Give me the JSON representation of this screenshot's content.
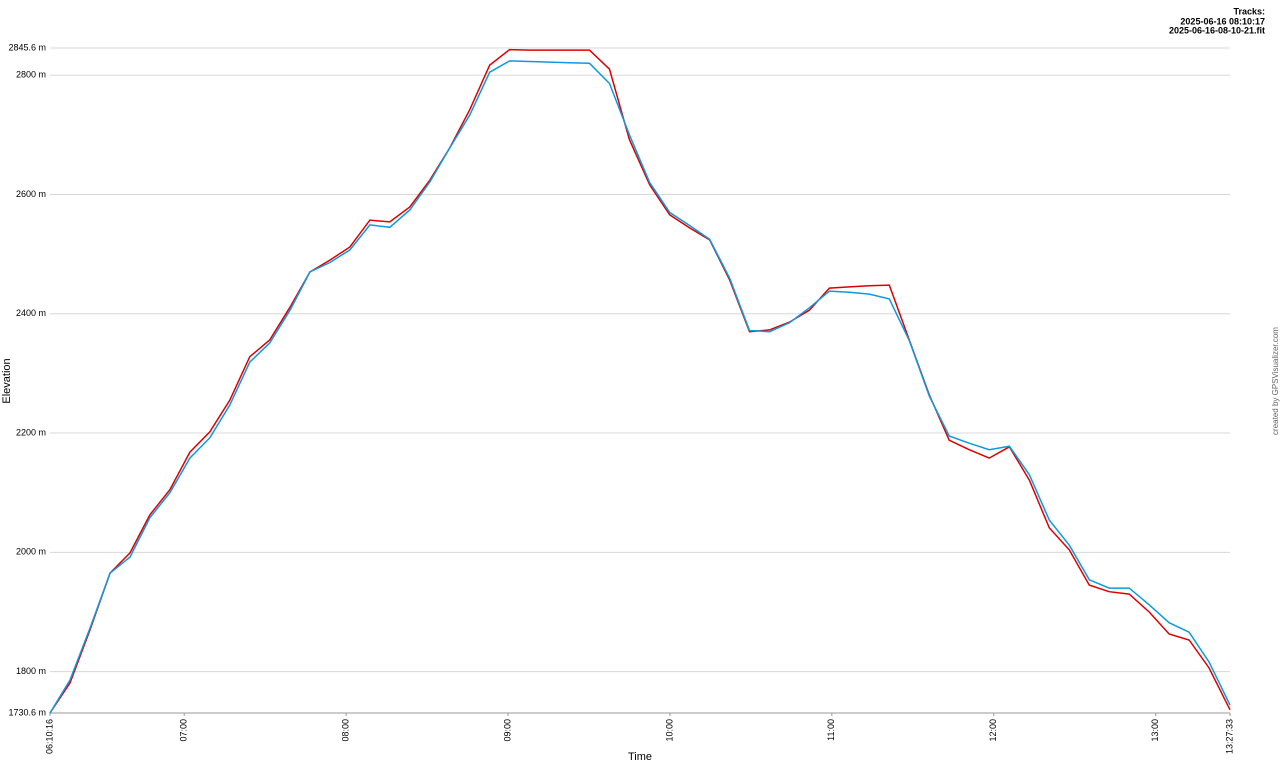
{
  "chart_data": {
    "type": "line",
    "legend_title": "Tracks:",
    "x_label": "Time",
    "y_label": "Elevation",
    "credit": "created by GPSVisualizer.com",
    "legend": "top-right",
    "grid": true,
    "xlim": [
      370.27,
      807.55
    ],
    "xticks": [
      {
        "value": 370.27,
        "label": "06:10:16"
      },
      {
        "value": 420,
        "label": "07:00"
      },
      {
        "value": 480,
        "label": "08:00"
      },
      {
        "value": 540,
        "label": "09:00"
      },
      {
        "value": 600,
        "label": "10:00"
      },
      {
        "value": 660,
        "label": "11:00"
      },
      {
        "value": 720,
        "label": "12:00"
      },
      {
        "value": 780,
        "label": "13:00"
      },
      {
        "value": 807.55,
        "label": "13:27:33"
      }
    ],
    "ylim": [
      1730.6,
      2845.6
    ],
    "yticks": [
      {
        "value": 1730.6,
        "label": "1730.6 m"
      },
      {
        "value": 1800,
        "label": "1800 m"
      },
      {
        "value": 2000,
        "label": "2000 m"
      },
      {
        "value": 2200,
        "label": "2200 m"
      },
      {
        "value": 2400,
        "label": "2400 m"
      },
      {
        "value": 2600,
        "label": "2600 m"
      },
      {
        "value": 2800,
        "label": "2800 m"
      },
      {
        "value": 2845.6,
        "label": "2845.6 m"
      }
    ],
    "x": [
      370.27,
      377.7,
      385.1,
      392.5,
      399.9,
      407.3,
      414.7,
      422.1,
      429.5,
      436.9,
      444.3,
      451.7,
      459.2,
      466.6,
      474.0,
      481.4,
      488.8,
      496.2,
      503.6,
      511.0,
      518.4,
      525.8,
      533.2,
      540.6,
      548.0,
      555.4,
      562.8,
      570.2,
      577.6,
      585.0,
      592.5,
      599.9,
      607.3,
      614.7,
      622.1,
      629.5,
      636.9,
      644.3,
      651.7,
      659.1,
      666.5,
      673.9,
      681.3,
      688.7,
      696.1,
      703.5,
      710.9,
      718.3,
      725.8,
      733.2,
      740.6,
      748.0,
      755.4,
      762.8,
      770.2,
      777.6,
      785.0,
      792.4,
      799.8,
      807.55
    ],
    "series": [
      {
        "name": "2025-06-16 08:10:17",
        "color": "#dd0000",
        "values": [
          1730.6,
          1781,
          1870,
          1965,
          1999,
          2063,
          2105,
          2168,
          2202,
          2255,
          2328,
          2356,
          2411,
          2470,
          2490,
          2512,
          2557,
          2554,
          2579,
          2624,
          2678,
          2742,
          2817,
          2843,
          2842,
          2842,
          2842,
          2842,
          2810,
          2692,
          2616,
          2566,
          2544,
          2524,
          2457,
          2370,
          2373,
          2386,
          2406,
          2443,
          2445,
          2447,
          2448,
          2356,
          2264,
          2188,
          2172,
          2158,
          2177,
          2121,
          2041,
          2004,
          1945,
          1934,
          1930,
          1900,
          1863,
          1853,
          1806,
          1736
        ]
      },
      {
        "name": "2025-06-16-08-10-21.fit",
        "color": "#0d9ae0",
        "values": [
          1730.6,
          1786,
          1873,
          1965,
          1992,
          2058,
          2100,
          2158,
          2192,
          2247,
          2319,
          2351,
          2406,
          2470,
          2486,
          2507,
          2549,
          2545,
          2574,
          2621,
          2678,
          2733,
          2805,
          2824,
          2823,
          2822,
          2821,
          2820,
          2786,
          2700,
          2620,
          2570,
          2548,
          2525,
          2460,
          2372,
          2370,
          2385,
          2410,
          2438,
          2436,
          2433,
          2425,
          2355,
          2262,
          2195,
          2183,
          2172,
          2178,
          2130,
          2054,
          2012,
          1954,
          1940,
          1940,
          1912,
          1882,
          1866,
          1816,
          1744
        ]
      }
    ]
  }
}
